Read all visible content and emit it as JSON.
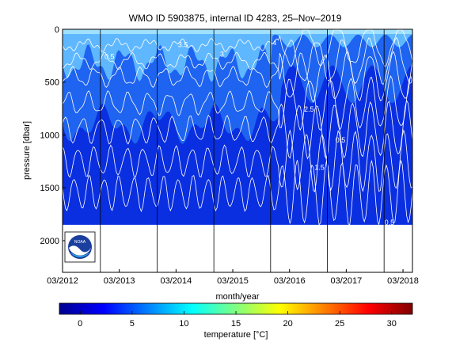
{
  "chart_data": {
    "type": "heatmap",
    "title": "WMO ID 5903875, internal ID 4283, 25–Nov–2019",
    "xlabel": "month/year",
    "ylabel": "pressure [dbar]",
    "x_ticks": [
      "03/2012",
      "03/2013",
      "03/2014",
      "03/2015",
      "03/2016",
      "03/2017",
      "03/2018"
    ],
    "y_ticks": [
      0,
      500,
      1000,
      1500,
      2000
    ],
    "xlim": [
      "2012-03",
      "2018-05"
    ],
    "ylim": [
      2300,
      0
    ],
    "data_max_pressure": 1850,
    "colorbar": {
      "label_prefix": "temperature [",
      "label_unit": "°C",
      "label_suffix": "]",
      "ticks": [
        0,
        5,
        10,
        15,
        20,
        25,
        30
      ],
      "range": [
        -2,
        32
      ],
      "colormap": [
        "#00008f",
        "#0000ff",
        "#0080ff",
        "#00ffff",
        "#80ff80",
        "#ffff00",
        "#ff8000",
        "#ff0000",
        "#800000"
      ]
    },
    "contour_levels": [
      "0.5",
      "1.5",
      "2",
      "2.5",
      "3",
      "3.5",
      "4",
      "5"
    ],
    "colors": {
      "deep": "#0a2fe0",
      "mid": "#1e64f0",
      "shallow": "#5fb8ff",
      "contour": "#ffffff"
    },
    "logo": "noaa-logo"
  }
}
